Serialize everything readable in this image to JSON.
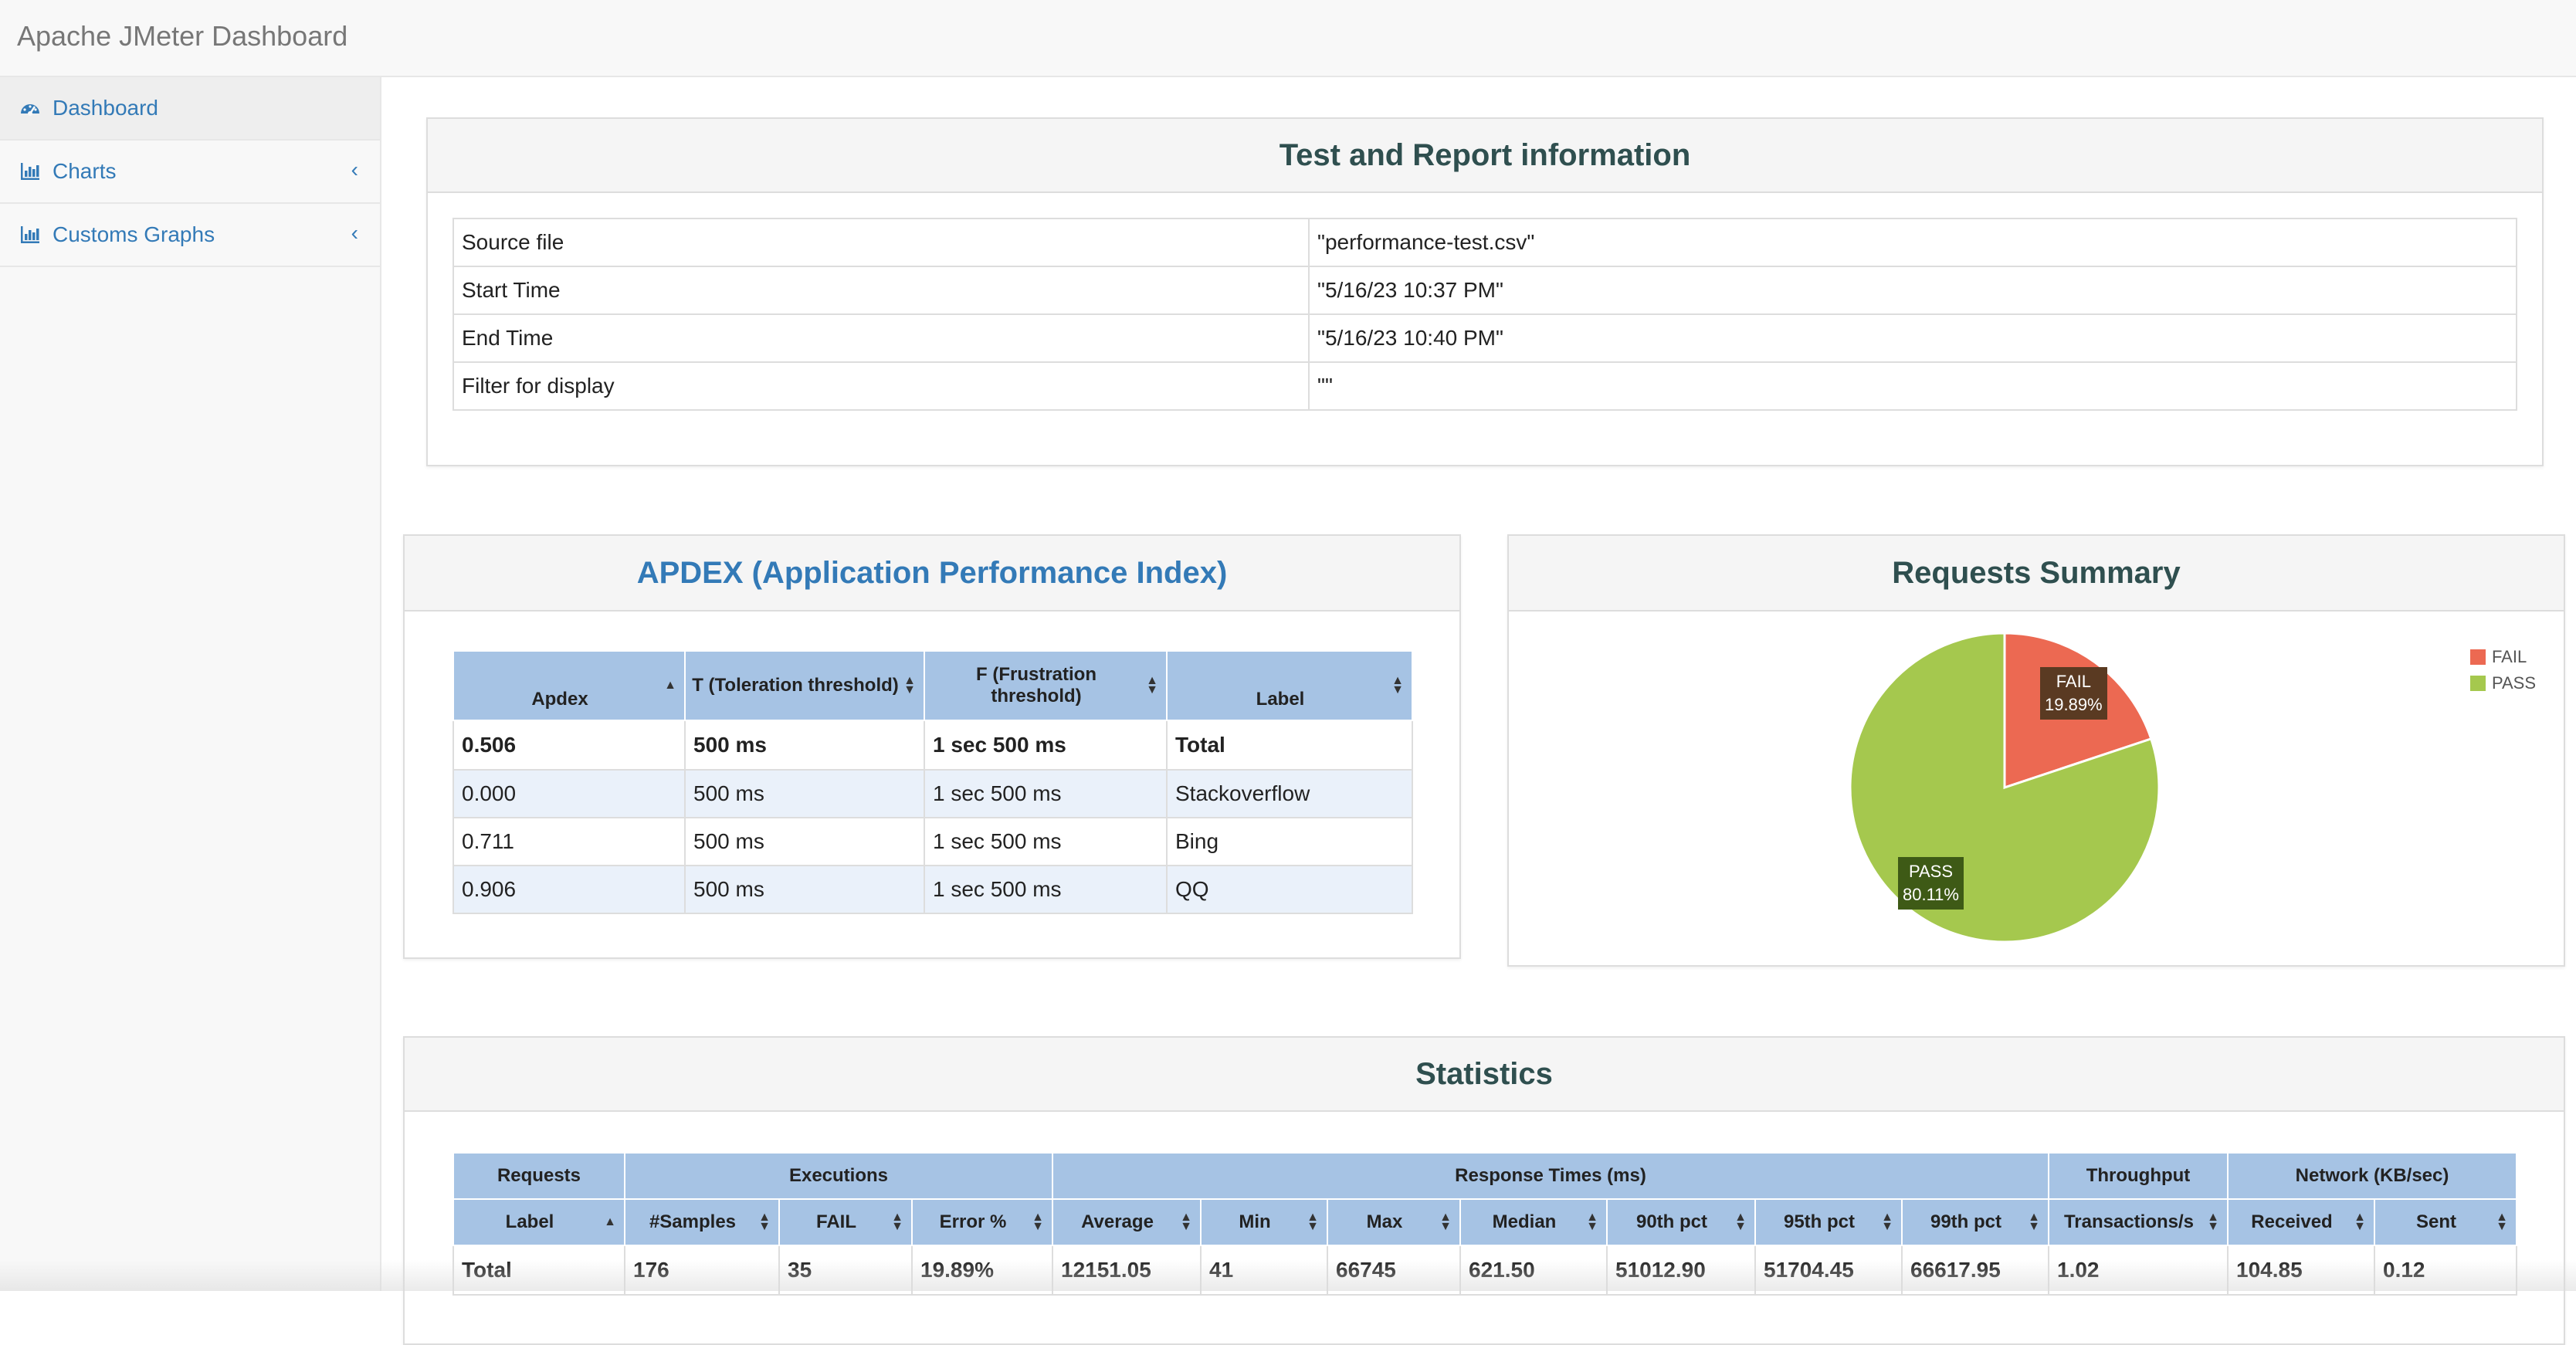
{
  "app": {
    "title": "Apache JMeter Dashboard"
  },
  "sidebar": {
    "items": [
      {
        "label": "Dashboard",
        "icon": "dashboard-icon"
      },
      {
        "label": "Charts",
        "icon": "bar-chart-icon"
      },
      {
        "label": "Customs Graphs",
        "icon": "bar-chart-icon"
      }
    ]
  },
  "test_info": {
    "title": "Test and Report information",
    "rows": [
      {
        "key": "Source file",
        "value": "\"performance-test.csv\""
      },
      {
        "key": "Start Time",
        "value": "\"5/16/23 10:37 PM\""
      },
      {
        "key": "End Time",
        "value": "\"5/16/23 10:40 PM\""
      },
      {
        "key": "Filter for display",
        "value": "\"\""
      }
    ]
  },
  "apdex": {
    "title": "APDEX (Application Performance Index)",
    "headers": [
      "Apdex",
      "T (Toleration threshold)",
      "F (Frustration threshold)",
      "Label"
    ],
    "rows": [
      [
        "0.506",
        "500 ms",
        "1 sec 500 ms",
        "Total"
      ],
      [
        "0.000",
        "500 ms",
        "1 sec 500 ms",
        "Stackoverflow"
      ],
      [
        "0.711",
        "500 ms",
        "1 sec 500 ms",
        "Bing"
      ],
      [
        "0.906",
        "500 ms",
        "1 sec 500 ms",
        "QQ"
      ]
    ]
  },
  "requests_summary": {
    "title": "Requests Summary",
    "colors": {
      "fail": "#ec6952",
      "pass": "#a5c84e"
    },
    "legend": [
      "FAIL",
      "PASS"
    ],
    "labels": {
      "fail_name": "FAIL",
      "fail_pct": "19.89%",
      "pass_name": "PASS",
      "pass_pct": "80.11%"
    }
  },
  "chart_data": {
    "type": "pie",
    "categories": [
      "FAIL",
      "PASS"
    ],
    "values": [
      19.89,
      80.11
    ]
  },
  "statistics": {
    "title": "Statistics",
    "groups": [
      "Requests",
      "Executions",
      "Response Times (ms)",
      "Throughput",
      "Network (KB/sec)"
    ],
    "headers": [
      "Label",
      "#Samples",
      "FAIL",
      "Error %",
      "Average",
      "Min",
      "Max",
      "Median",
      "90th pct",
      "95th pct",
      "99th pct",
      "Transactions/s",
      "Received",
      "Sent"
    ],
    "total": [
      "Total",
      "176",
      "35",
      "19.89%",
      "12151.05",
      "41",
      "66745",
      "621.50",
      "51012.90",
      "51704.45",
      "66617.95",
      "1.02",
      "104.85",
      "0.12"
    ]
  }
}
